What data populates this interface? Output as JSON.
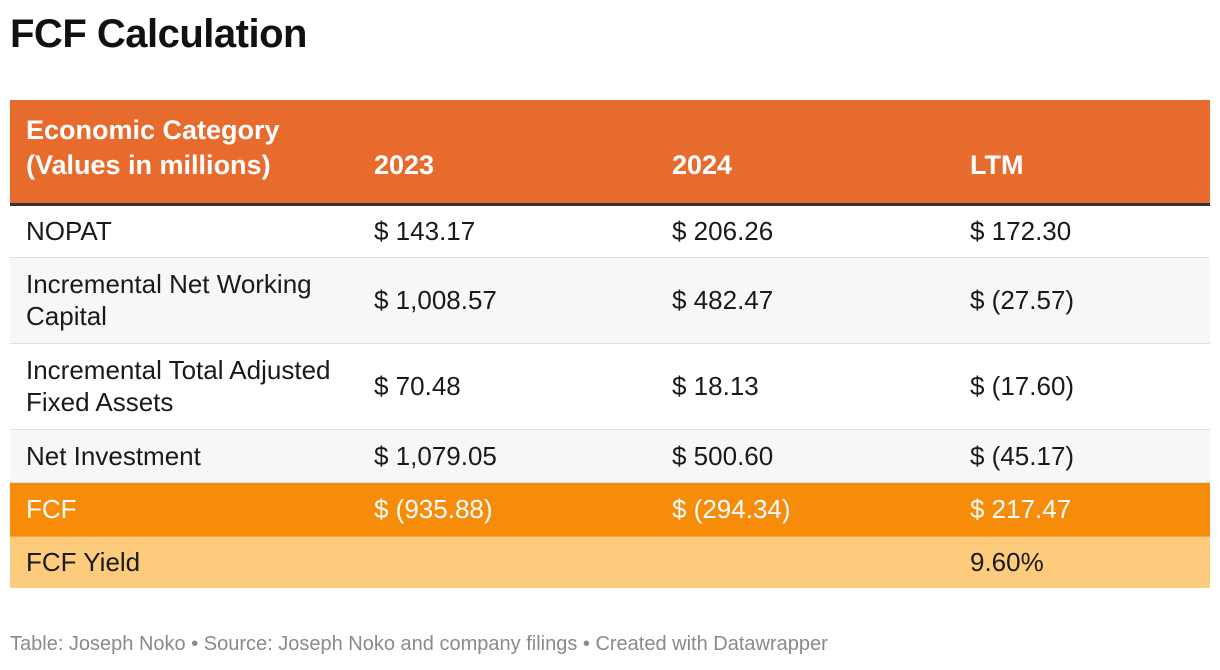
{
  "title": "FCF Calculation",
  "chart_data": {
    "type": "table",
    "title": "FCF Calculation",
    "columns": [
      "Economic Category (Values in millions)",
      "2023",
      "2024",
      "LTM"
    ],
    "header": {
      "category_line1": "Economic Category",
      "category_line2": "(Values in millions)",
      "col_2023": "2023",
      "col_2024": "2024",
      "col_ltm": "LTM"
    },
    "rows": [
      {
        "label": "NOPAT",
        "v2023": "$ 143.17",
        "v2024": "$ 206.26",
        "ltm": "$ 172.30"
      },
      {
        "label": "Incremental Net Working Capital",
        "v2023": "$ 1,008.57",
        "v2024": "$ 482.47",
        "ltm": "$ (27.57)"
      },
      {
        "label": "Incremental Total Adjusted Fixed Assets",
        "v2023": "$ 70.48",
        "v2024": "$ 18.13",
        "ltm": "$ (17.60)"
      },
      {
        "label": "Net Investment",
        "v2023": "$ 1,079.05",
        "v2024": "$ 500.60",
        "ltm": "$ (45.17)"
      },
      {
        "label": "FCF",
        "v2023": "$ (935.88)",
        "v2024": "$ (294.34)",
        "ltm": "$ 217.47"
      },
      {
        "label": "FCF Yield",
        "v2023": "",
        "v2024": "",
        "ltm": "9.60%"
      }
    ]
  },
  "colors": {
    "header_bg": "#e86b2e",
    "fcf_row_bg": "#f78b0a",
    "fcf_yield_row_bg": "#fdcb7c",
    "shaded_row_bg": "#f7f7f7"
  },
  "footer": "Table: Joseph Noko • Source: Joseph Noko and company filings • Created with Datawrapper"
}
